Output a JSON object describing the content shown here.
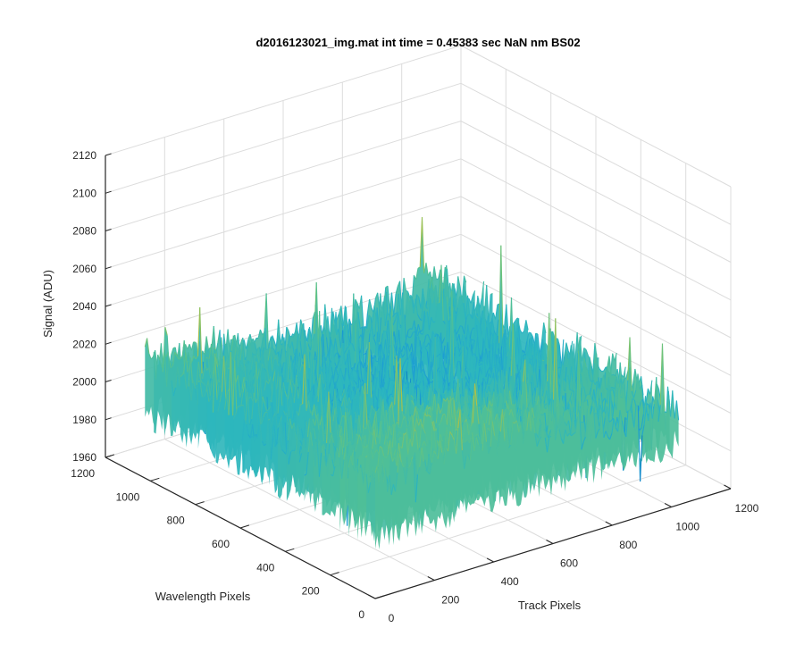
{
  "chart_data": {
    "type": "surface",
    "title": "d2016123021_img.mat int time = 0.45383 sec  NaN nm BS02",
    "xlabel": "Track Pixels",
    "ylabel": "Wavelength Pixels",
    "zlabel": "Signal (ADU)",
    "xlim": [
      0,
      1200
    ],
    "ylim": [
      0,
      1200
    ],
    "zlim": [
      1960,
      2120
    ],
    "xticks": [
      "0",
      "200",
      "400",
      "600",
      "800",
      "1000",
      "1200"
    ],
    "yticks": [
      "0",
      "200",
      "400",
      "600",
      "800",
      "1000",
      "1200"
    ],
    "zticks": [
      "1960",
      "1980",
      "2000",
      "2020",
      "2040",
      "2060",
      "2080",
      "2100",
      "2120"
    ],
    "data_extent": {
      "x": [
        0,
        1024
      ],
      "y": [
        0,
        1024
      ]
    },
    "baseline_signal": 2015,
    "noise_amplitude": 15,
    "signal_range_observed": [
      1955,
      2100
    ],
    "grid": true,
    "box": "back planes",
    "colormap": "parula",
    "colormap_stops": [
      "#0072bd",
      "#1a9ad6",
      "#2bb5c0",
      "#5bc28a",
      "#a9c14a",
      "#d9bb3b"
    ]
  }
}
